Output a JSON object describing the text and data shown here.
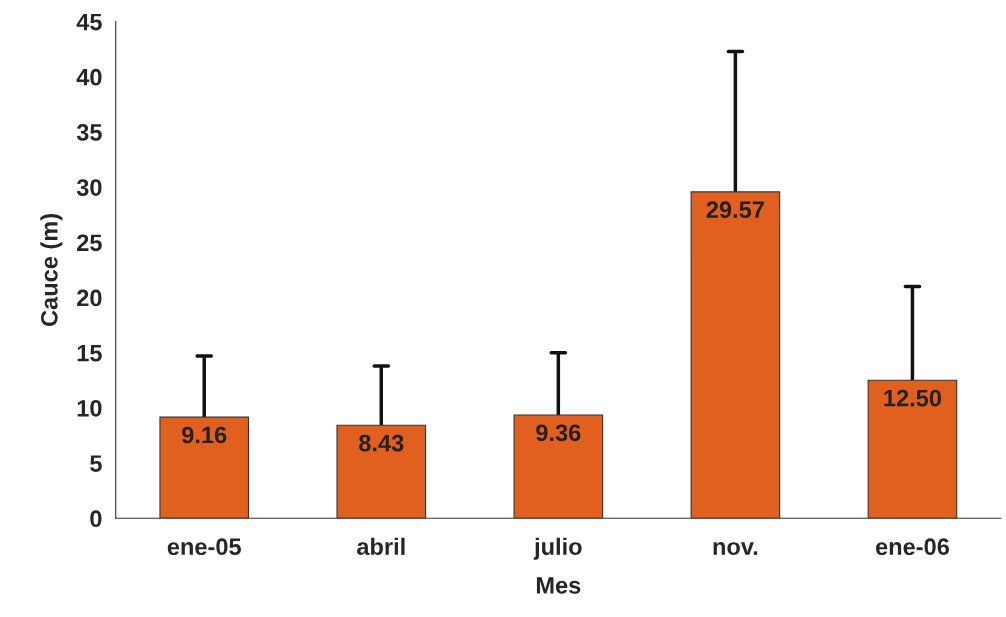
{
  "chart_data": {
    "type": "bar",
    "xlabel": "Mes",
    "ylabel": "Cauce (m)",
    "categories": [
      "ene-05",
      "abril",
      "julio",
      "nov.",
      "ene-06"
    ],
    "values": [
      9.16,
      8.43,
      9.36,
      29.57,
      12.5
    ],
    "value_labels": [
      "9.16",
      "8.43",
      "9.36",
      "29.57",
      "12.50"
    ],
    "errors": [
      [
        9.16,
        14.7
      ],
      [
        8.43,
        13.8
      ],
      [
        9.36,
        15.0
      ],
      [
        29.57,
        42.3
      ],
      [
        12.5,
        21.0
      ]
    ],
    "color": "#e2601f",
    "ylim": [
      0,
      45
    ],
    "yticks": [
      0,
      5,
      10,
      15,
      20,
      25,
      30,
      35,
      40,
      45
    ],
    "grid": false,
    "legend": false
  }
}
